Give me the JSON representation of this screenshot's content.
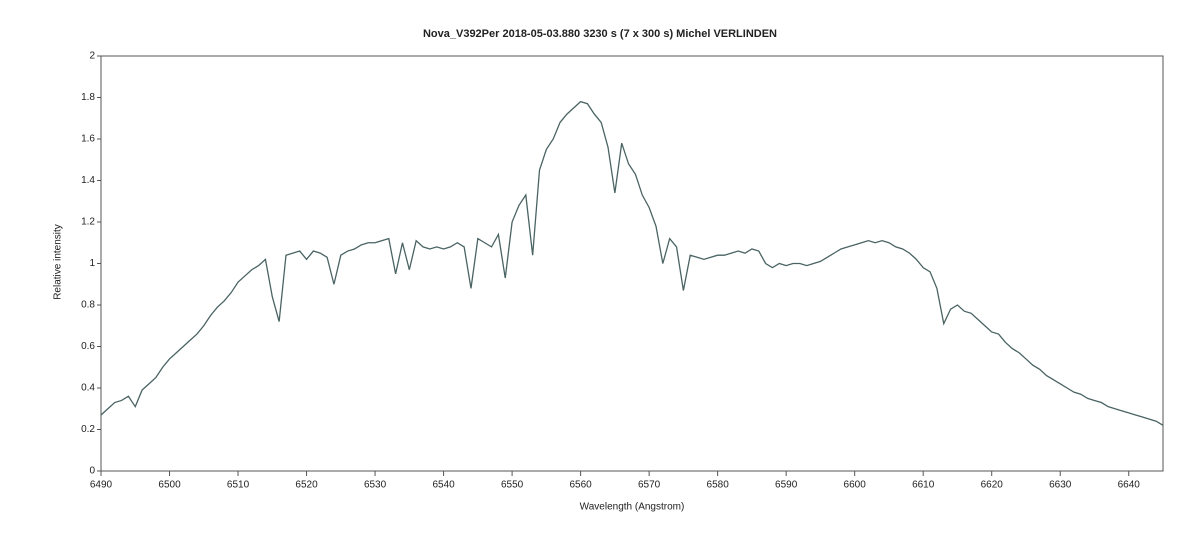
{
  "chart_data": {
    "type": "line",
    "title": "Nova_V392Per   2018-05-03.880   3230 s (7 x 300 s)   Michel VERLINDEN",
    "x_label": "Wavelength (Angstrom)",
    "y_label": "Relative intensity",
    "xlim": [
      6490,
      6645
    ],
    "ylim": [
      0,
      2
    ],
    "xticks": [
      6490,
      6500,
      6510,
      6520,
      6530,
      6540,
      6550,
      6560,
      6570,
      6580,
      6590,
      6600,
      6610,
      6620,
      6630,
      6640
    ],
    "yticks": [
      0,
      0.2,
      0.4,
      0.6,
      0.8,
      1,
      1.2,
      1.4,
      1.6,
      1.8,
      2
    ],
    "series": [
      {
        "color": "#4a6363",
        "x": [
          6490,
          6491,
          6492,
          6493,
          6494,
          6495,
          6496,
          6497,
          6498,
          6499,
          6500,
          6501,
          6502,
          6503,
          6504,
          6505,
          6506,
          6507,
          6508,
          6509,
          6510,
          6511,
          6512,
          6513,
          6514,
          6515,
          6516,
          6517,
          6518,
          6519,
          6520,
          6521,
          6522,
          6523,
          6524,
          6525,
          6526,
          6527,
          6528,
          6529,
          6530,
          6531,
          6532,
          6533,
          6534,
          6535,
          6536,
          6537,
          6538,
          6539,
          6540,
          6541,
          6542,
          6543,
          6544,
          6545,
          6546,
          6547,
          6548,
          6549,
          6550,
          6551,
          6552,
          6553,
          6554,
          6555,
          6556,
          6557,
          6558,
          6559,
          6560,
          6561,
          6562,
          6563,
          6564,
          6565,
          6566,
          6567,
          6568,
          6569,
          6570,
          6571,
          6572,
          6573,
          6574,
          6575,
          6576,
          6577,
          6578,
          6579,
          6580,
          6581,
          6582,
          6583,
          6584,
          6585,
          6586,
          6587,
          6588,
          6589,
          6590,
          6591,
          6592,
          6593,
          6594,
          6595,
          6596,
          6597,
          6598,
          6599,
          6600,
          6601,
          6602,
          6603,
          6604,
          6605,
          6606,
          6607,
          6608,
          6609,
          6610,
          6611,
          6612,
          6613,
          6614,
          6615,
          6616,
          6617,
          6618,
          6619,
          6620,
          6621,
          6622,
          6623,
          6624,
          6625,
          6626,
          6627,
          6628,
          6629,
          6630,
          6631,
          6632,
          6633,
          6634,
          6635,
          6636,
          6637,
          6638,
          6639,
          6640,
          6641,
          6642,
          6643,
          6644,
          6645
        ],
        "values": [
          0.27,
          0.3,
          0.33,
          0.34,
          0.36,
          0.31,
          0.39,
          0.42,
          0.45,
          0.5,
          0.54,
          0.57,
          0.6,
          0.63,
          0.66,
          0.7,
          0.75,
          0.79,
          0.82,
          0.86,
          0.91,
          0.94,
          0.97,
          0.99,
          1.02,
          0.84,
          0.72,
          1.04,
          1.05,
          1.06,
          1.02,
          1.06,
          1.05,
          1.03,
          0.9,
          1.04,
          1.06,
          1.07,
          1.09,
          1.1,
          1.1,
          1.11,
          1.12,
          0.95,
          1.1,
          0.97,
          1.11,
          1.08,
          1.07,
          1.08,
          1.07,
          1.08,
          1.1,
          1.08,
          0.88,
          1.12,
          1.1,
          1.08,
          1.14,
          0.93,
          1.2,
          1.28,
          1.33,
          1.04,
          1.45,
          1.55,
          1.6,
          1.68,
          1.72,
          1.75,
          1.78,
          1.77,
          1.72,
          1.68,
          1.56,
          1.34,
          1.58,
          1.48,
          1.43,
          1.33,
          1.27,
          1.18,
          1.0,
          1.12,
          1.08,
          0.87,
          1.04,
          1.03,
          1.02,
          1.03,
          1.04,
          1.04,
          1.05,
          1.06,
          1.05,
          1.07,
          1.06,
          1.0,
          0.98,
          1.0,
          0.99,
          1.0,
          1.0,
          0.99,
          1.0,
          1.01,
          1.03,
          1.05,
          1.07,
          1.08,
          1.09,
          1.1,
          1.11,
          1.1,
          1.11,
          1.1,
          1.08,
          1.07,
          1.05,
          1.02,
          0.98,
          0.96,
          0.88,
          0.71,
          0.78,
          0.8,
          0.77,
          0.76,
          0.73,
          0.7,
          0.67,
          0.66,
          0.62,
          0.59,
          0.57,
          0.54,
          0.51,
          0.49,
          0.46,
          0.44,
          0.42,
          0.4,
          0.38,
          0.37,
          0.35,
          0.34,
          0.33,
          0.31,
          0.3,
          0.29,
          0.28,
          0.27,
          0.26,
          0.25,
          0.24,
          0.22
        ]
      }
    ]
  }
}
